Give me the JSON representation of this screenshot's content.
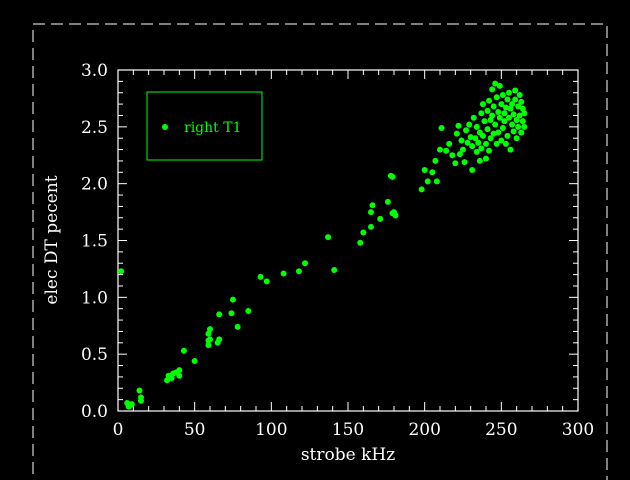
{
  "chart_data": {
    "type": "scatter",
    "title": "",
    "xlabel": "strobe kHz",
    "ylabel": "elec DT pecent",
    "xlim": [
      0,
      300
    ],
    "ylim": [
      0,
      3.0
    ],
    "x_ticks": [
      0,
      50,
      100,
      150,
      200,
      250,
      300
    ],
    "y_ticks": [
      0.0,
      0.5,
      1.0,
      1.5,
      2.0,
      2.5,
      3.0
    ],
    "x_tick_labels": [
      "0",
      "50",
      "100",
      "150",
      "200",
      "250",
      "300"
    ],
    "y_tick_labels": [
      "0.0",
      "0.5",
      "1.0",
      "1.5",
      "2.0",
      "2.5",
      "3.0"
    ],
    "grid": false,
    "legend_position": "top-left",
    "colors": {
      "background": "#000000",
      "axes": "#ffffff",
      "marker": "#00ff00"
    },
    "series": [
      {
        "name": "right T1",
        "points": [
          [
            2,
            1.23
          ],
          [
            6,
            0.07
          ],
          [
            7,
            0.04
          ],
          [
            8,
            0.05
          ],
          [
            9,
            0.06
          ],
          [
            14,
            0.18
          ],
          [
            15,
            0.09
          ],
          [
            15,
            0.12
          ],
          [
            32,
            0.27
          ],
          [
            33,
            0.31
          ],
          [
            34,
            0.3
          ],
          [
            35,
            0.29
          ],
          [
            36,
            0.33
          ],
          [
            38,
            0.34
          ],
          [
            40,
            0.31
          ],
          [
            40,
            0.36
          ],
          [
            43,
            0.53
          ],
          [
            50,
            0.44
          ],
          [
            59,
            0.58
          ],
          [
            59,
            0.62
          ],
          [
            59,
            0.68
          ],
          [
            60,
            0.72
          ],
          [
            60,
            0.63
          ],
          [
            65,
            0.6
          ],
          [
            66,
            0.63
          ],
          [
            66,
            0.85
          ],
          [
            74,
            0.86
          ],
          [
            75,
            0.98
          ],
          [
            78,
            0.74
          ],
          [
            85,
            0.88
          ],
          [
            93,
            1.18
          ],
          [
            97,
            1.14
          ],
          [
            108,
            1.21
          ],
          [
            118,
            1.23
          ],
          [
            122,
            1.3
          ],
          [
            137,
            1.53
          ],
          [
            141,
            1.24
          ],
          [
            158,
            1.48
          ],
          [
            160,
            1.57
          ],
          [
            165,
            1.62
          ],
          [
            165,
            1.75
          ],
          [
            166,
            1.81
          ],
          [
            171,
            1.69
          ],
          [
            176,
            1.84
          ],
          [
            178,
            2.07
          ],
          [
            179,
            2.06
          ],
          [
            179,
            1.74
          ],
          [
            180,
            1.75
          ],
          [
            181,
            1.72
          ],
          [
            198,
            1.95
          ],
          [
            200,
            2.12
          ],
          [
            202,
            2.02
          ],
          [
            205,
            2.1
          ],
          [
            207,
            2.2
          ],
          [
            208,
            2.02
          ],
          [
            210,
            2.3
          ],
          [
            211,
            2.49
          ],
          [
            214,
            2.29
          ],
          [
            216,
            2.35
          ],
          [
            218,
            2.25
          ],
          [
            220,
            2.18
          ],
          [
            221,
            2.44
          ],
          [
            222,
            2.51
          ],
          [
            223,
            2.26
          ],
          [
            224,
            2.38
          ],
          [
            225,
            2.3
          ],
          [
            226,
            2.19
          ],
          [
            227,
            2.47
          ],
          [
            228,
            2.36
          ],
          [
            229,
            2.52
          ],
          [
            230,
            2.41
          ],
          [
            231,
            2.33
          ],
          [
            231,
            2.12
          ],
          [
            232,
            2.58
          ],
          [
            233,
            2.4
          ],
          [
            234,
            2.5
          ],
          [
            234,
            2.28
          ],
          [
            235,
            2.36
          ],
          [
            236,
            2.45
          ],
          [
            236,
            2.2
          ],
          [
            237,
            2.62
          ],
          [
            237,
            2.31
          ],
          [
            238,
            2.7
          ],
          [
            238,
            2.42
          ],
          [
            239,
            2.55
          ],
          [
            240,
            2.35
          ],
          [
            240,
            2.22
          ],
          [
            241,
            2.48
          ],
          [
            241,
            2.64
          ],
          [
            242,
            2.73
          ],
          [
            242,
            2.29
          ],
          [
            243,
            2.56
          ],
          [
            243,
            2.4
          ],
          [
            244,
            2.83
          ],
          [
            244,
            2.6
          ],
          [
            245,
            2.44
          ],
          [
            245,
            2.68
          ],
          [
            246,
            2.88
          ],
          [
            246,
            2.52
          ],
          [
            247,
            2.35
          ],
          [
            247,
            2.76
          ],
          [
            248,
            2.63
          ],
          [
            248,
            2.45
          ],
          [
            249,
            2.86
          ],
          [
            249,
            2.58
          ],
          [
            250,
            2.7
          ],
          [
            250,
            2.38
          ],
          [
            251,
            2.49
          ],
          [
            251,
            2.78
          ],
          [
            252,
            2.62
          ],
          [
            252,
            2.55
          ],
          [
            253,
            2.35
          ],
          [
            253,
            2.67
          ],
          [
            254,
            2.74
          ],
          [
            254,
            2.42
          ],
          [
            255,
            2.58
          ],
          [
            255,
            2.8
          ],
          [
            256,
            2.3
          ],
          [
            256,
            2.66
          ],
          [
            257,
            2.52
          ],
          [
            257,
            2.7
          ],
          [
            258,
            2.61
          ],
          [
            258,
            2.46
          ],
          [
            259,
            2.74
          ],
          [
            259,
            2.82
          ],
          [
            260,
            2.56
          ],
          [
            260,
            2.4
          ],
          [
            261,
            2.68
          ],
          [
            261,
            2.5
          ],
          [
            262,
            2.78
          ],
          [
            262,
            2.6
          ],
          [
            263,
            2.45
          ],
          [
            263,
            2.72
          ],
          [
            264,
            2.55
          ],
          [
            264,
            2.66
          ],
          [
            265,
            2.62
          ],
          [
            265,
            2.5
          ]
        ]
      }
    ]
  }
}
